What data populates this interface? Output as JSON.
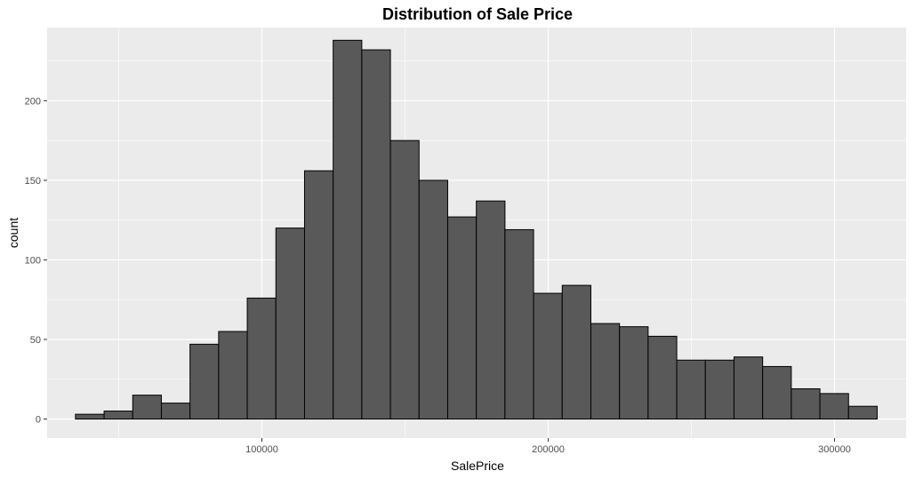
{
  "chart_data": {
    "type": "bar",
    "title": "Distribution of Sale Price",
    "xlabel": "SalePrice",
    "ylabel": "count",
    "xlim": [
      25000,
      325000
    ],
    "ylim": [
      -12,
      246
    ],
    "xticks": [
      100000,
      200000,
      300000
    ],
    "xtick_labels": [
      "100000",
      "200000",
      "300000"
    ],
    "yticks": [
      0,
      50,
      100,
      150,
      200
    ],
    "ytick_labels": [
      "0",
      "50",
      "100",
      "150",
      "200"
    ],
    "grid": true,
    "bin_width": 10000,
    "bins": [
      {
        "x0": 34900,
        "x1": 44900,
        "count": 3
      },
      {
        "x0": 44900,
        "x1": 54900,
        "count": 5
      },
      {
        "x0": 54900,
        "x1": 64900,
        "count": 15
      },
      {
        "x0": 64900,
        "x1": 74900,
        "count": 10
      },
      {
        "x0": 74900,
        "x1": 84900,
        "count": 47
      },
      {
        "x0": 84900,
        "x1": 94900,
        "count": 55
      },
      {
        "x0": 94900,
        "x1": 104900,
        "count": 76
      },
      {
        "x0": 104900,
        "x1": 114900,
        "count": 120
      },
      {
        "x0": 114900,
        "x1": 124900,
        "count": 156
      },
      {
        "x0": 124900,
        "x1": 134900,
        "count": 238
      },
      {
        "x0": 134900,
        "x1": 144900,
        "count": 232
      },
      {
        "x0": 144900,
        "x1": 154900,
        "count": 175
      },
      {
        "x0": 154900,
        "x1": 164900,
        "count": 150
      },
      {
        "x0": 164900,
        "x1": 174900,
        "count": 127
      },
      {
        "x0": 174900,
        "x1": 184900,
        "count": 137
      },
      {
        "x0": 184900,
        "x1": 194900,
        "count": 119
      },
      {
        "x0": 194900,
        "x1": 204900,
        "count": 79
      },
      {
        "x0": 204900,
        "x1": 214900,
        "count": 84
      },
      {
        "x0": 214900,
        "x1": 224900,
        "count": 60
      },
      {
        "x0": 224900,
        "x1": 234900,
        "count": 58
      },
      {
        "x0": 234900,
        "x1": 244900,
        "count": 52
      },
      {
        "x0": 244900,
        "x1": 254900,
        "count": 37
      },
      {
        "x0": 254900,
        "x1": 264900,
        "count": 37
      },
      {
        "x0": 264900,
        "x1": 274900,
        "count": 39
      },
      {
        "x0": 274900,
        "x1": 284900,
        "count": 33
      },
      {
        "x0": 284900,
        "x1": 294900,
        "count": 19
      },
      {
        "x0": 294900,
        "x1": 304900,
        "count": 16
      },
      {
        "x0": 304900,
        "x1": 314900,
        "count": 8
      }
    ],
    "colors": {
      "panel": "#ebebeb",
      "grid_major": "#ffffff",
      "bar_fill": "#595959",
      "bar_stroke": "#000000"
    }
  }
}
